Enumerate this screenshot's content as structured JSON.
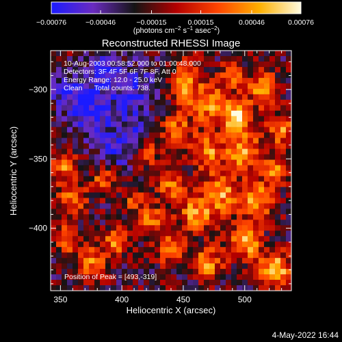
{
  "chart_data": {
    "type": "heatmap",
    "title": "Reconstructed RHESSI Image",
    "xlabel": "Heliocentric X (arcsec)",
    "ylabel": "Heliocentric Y (arcsec)",
    "xlim": [
      342,
      538
    ],
    "ylim": [
      -445,
      -272
    ],
    "x_ticks": [
      350,
      400,
      450,
      500
    ],
    "y_ticks": [
      -300,
      -350,
      -400
    ],
    "colorbar": {
      "range": [
        -0.00076,
        0.00076
      ],
      "ticks": [
        "-0.00076",
        "-0.00046",
        "-0.00015",
        "0.00015",
        "0.00046",
        "0.00076"
      ],
      "unit_label": "(photons cm^-2 s^-1 asec^-2)",
      "colormap": [
        "#1b1bff",
        "#6a2bc0",
        "#141414",
        "#b30000",
        "#ff4500",
        "#ffb000",
        "#fffbe0"
      ]
    },
    "annotations": [
      "10-Aug-2003 00:58:52.000 to 01:00:48.000",
      "Detectors: 3F 4F 5F 6F 7F 8F, Att 0",
      "Energy Range: 12.0 - 25.0 keV",
      "Clean      Total counts: 738.",
      "Position of Peak = [493,-319]"
    ],
    "peak": {
      "x": 493,
      "y": -319
    },
    "grid": false
  },
  "footer": {
    "date": "4-May-2022 16:44"
  }
}
